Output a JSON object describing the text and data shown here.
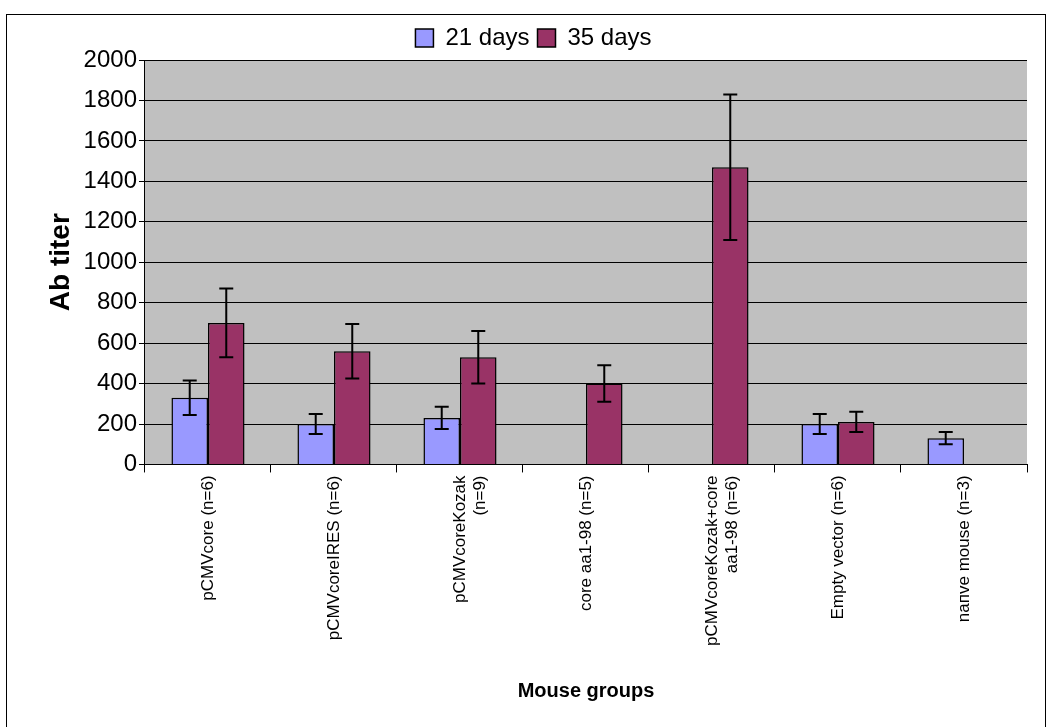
{
  "chart_data": {
    "type": "bar",
    "xlabel": "Mouse groups",
    "ylabel": "Ab titer",
    "categories": [
      "pCMVcore (n=6)",
      "pCMVcoreIRES (n=6)",
      "pCMVcoreKozak (n=9)",
      "core aa1-98 (n=5)",
      "pCMVcoreKozak+core aa1-98 (n=6)",
      "Empty vector (n=6)",
      "naпve mouse (n=3)"
    ],
    "series": [
      {
        "name": "21 days",
        "color": "#9999ff",
        "values": [
          330,
          200,
          230,
          null,
          null,
          200,
          130
        ],
        "errors": [
          85,
          50,
          55,
          null,
          null,
          50,
          30
        ]
      },
      {
        "name": "35 days",
        "color": "#993366",
        "values": [
          700,
          560,
          530,
          400,
          1470,
          210,
          null
        ],
        "errors": [
          170,
          135,
          130,
          90,
          360,
          50,
          null
        ]
      }
    ],
    "ylim": [
      0,
      2000
    ],
    "yticks": [
      0,
      200,
      400,
      600,
      800,
      1000,
      1200,
      1400,
      1600,
      1800,
      2000
    ],
    "grid": "y",
    "legend": "top"
  }
}
